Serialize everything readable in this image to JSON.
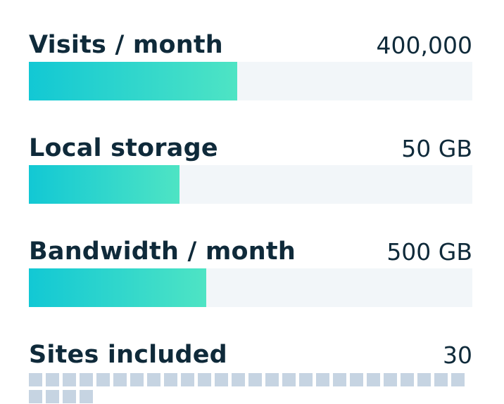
{
  "metrics": {
    "visits": {
      "label": "Visits / month",
      "value": "400,000",
      "fill_percent": 47
    },
    "storage": {
      "label": "Local storage",
      "value": "50 GB",
      "fill_percent": 34
    },
    "bandwidth": {
      "label": "Bandwidth / month",
      "value": "500 GB",
      "fill_percent": 40
    },
    "sites": {
      "label": "Sites included",
      "value": "30",
      "count": 30
    }
  },
  "colors": {
    "text": "#0f2a3a",
    "track": "#f2f6f9",
    "fill_start": "#12c8d4",
    "fill_end": "#4ee4c4",
    "site_square": "#c6d4e2"
  }
}
